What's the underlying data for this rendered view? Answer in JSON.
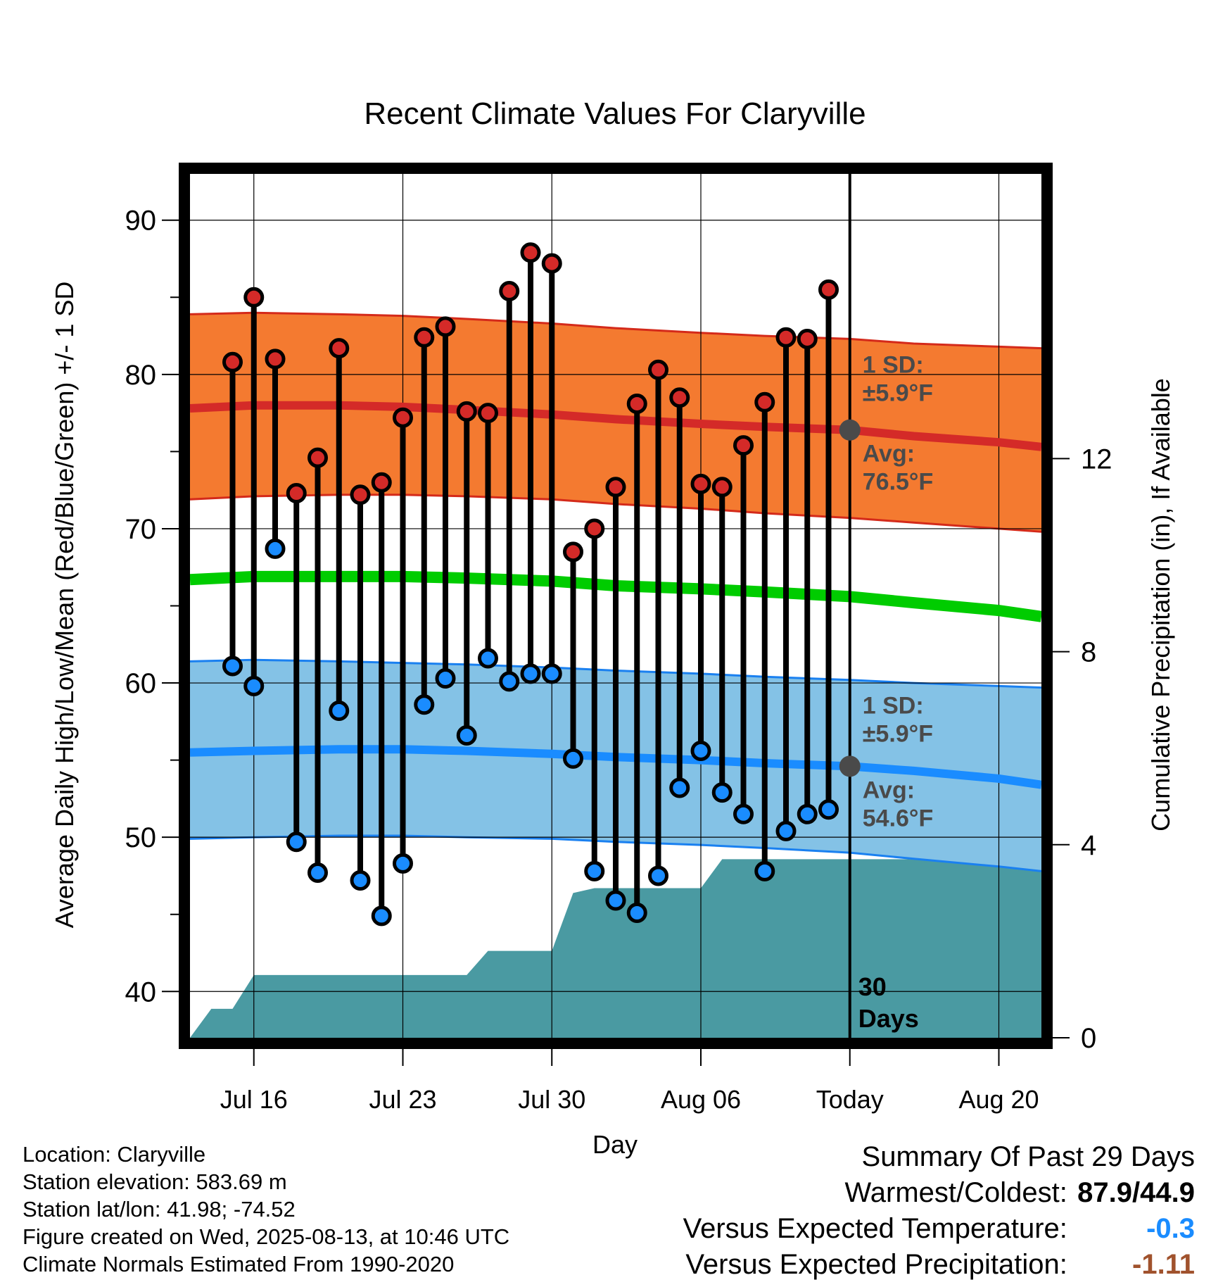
{
  "chart_data": {
    "type": "line",
    "title": "Recent Climate Values For Claryville",
    "xlabel": "Day",
    "ylabel": "Average Daily High/Low/Mean (Red/Blue/Green) +/- 1 SD",
    "y2label": "Cumulative Precipitation (in), If Available",
    "x_tick_labels": [
      "Jul 16",
      "Jul 23",
      "Jul 30",
      "Aug 06",
      "Today",
      "Aug 20"
    ],
    "x_tick_dates": [
      "2025-07-16",
      "2025-07-23",
      "2025-07-30",
      "2025-08-06",
      "2025-08-13",
      "2025-08-20"
    ],
    "x_range": [
      "2025-07-13",
      "2025-08-22"
    ],
    "ylim": [
      37,
      93
    ],
    "y_ticks": [
      40,
      50,
      60,
      70,
      80,
      90
    ],
    "y2lim": [
      0,
      17.9
    ],
    "y2_ticks": [
      0,
      4,
      8,
      12
    ],
    "grid": true,
    "today": "2025-08-13",
    "normals_dates": [
      "2025-07-13",
      "2025-07-16",
      "2025-07-20",
      "2025-07-23",
      "2025-07-26",
      "2025-07-30",
      "2025-08-02",
      "2025-08-06",
      "2025-08-09",
      "2025-08-13",
      "2025-08-16",
      "2025-08-20",
      "2025-08-22"
    ],
    "high_normal": [
      77.8,
      78.0,
      78.0,
      77.9,
      77.7,
      77.4,
      77.1,
      76.8,
      76.6,
      76.4,
      76.0,
      75.6,
      75.3
    ],
    "high_plus_sd": [
      83.9,
      84.0,
      83.9,
      83.8,
      83.6,
      83.3,
      83.0,
      82.7,
      82.5,
      82.3,
      82.0,
      81.8,
      81.7
    ],
    "high_minus_sd": [
      71.9,
      72.1,
      72.2,
      72.2,
      72.1,
      71.9,
      71.6,
      71.3,
      71.0,
      70.7,
      70.4,
      70.0,
      69.8
    ],
    "low_normal": [
      55.5,
      55.6,
      55.7,
      55.7,
      55.6,
      55.4,
      55.2,
      55.0,
      54.8,
      54.6,
      54.3,
      53.8,
      53.4
    ],
    "low_plus_sd": [
      61.4,
      61.5,
      61.4,
      61.3,
      61.2,
      61.0,
      60.8,
      60.6,
      60.4,
      60.2,
      60.0,
      59.8,
      59.7
    ],
    "low_minus_sd": [
      49.9,
      50.0,
      50.1,
      50.1,
      50.0,
      49.9,
      49.7,
      49.5,
      49.3,
      49.0,
      48.6,
      48.1,
      47.8
    ],
    "mean_normal": [
      66.7,
      66.9,
      66.9,
      66.9,
      66.8,
      66.6,
      66.3,
      66.1,
      65.9,
      65.6,
      65.2,
      64.7,
      64.3
    ],
    "observations": {
      "dates": [
        "2025-07-15",
        "2025-07-16",
        "2025-07-17",
        "2025-07-18",
        "2025-07-19",
        "2025-07-20",
        "2025-07-21",
        "2025-07-22",
        "2025-07-23",
        "2025-07-24",
        "2025-07-25",
        "2025-07-26",
        "2025-07-27",
        "2025-07-28",
        "2025-07-29",
        "2025-07-30",
        "2025-07-31",
        "2025-08-01",
        "2025-08-02",
        "2025-08-03",
        "2025-08-04",
        "2025-08-05",
        "2025-08-06",
        "2025-08-07",
        "2025-08-08",
        "2025-08-09",
        "2025-08-10",
        "2025-08-11",
        "2025-08-12"
      ],
      "highs": [
        80.8,
        85.0,
        81.0,
        72.3,
        74.6,
        81.7,
        72.2,
        73.0,
        77.2,
        82.4,
        83.1,
        77.6,
        77.5,
        85.4,
        87.9,
        87.2,
        68.5,
        70.0,
        72.7,
        78.1,
        80.3,
        78.5,
        72.9,
        72.7,
        75.4,
        78.2,
        82.4,
        82.3,
        85.5
      ],
      "lows": [
        61.1,
        59.8,
        68.7,
        49.7,
        47.7,
        58.2,
        47.2,
        44.9,
        48.3,
        58.6,
        60.3,
        56.6,
        61.6,
        60.1,
        60.6,
        60.6,
        55.1,
        47.8,
        45.9,
        45.1,
        47.5,
        53.2,
        55.6,
        52.9,
        51.5,
        47.8,
        50.4,
        51.5,
        51.8
      ]
    },
    "precipitation": {
      "dates": [
        "2025-07-13",
        "2025-07-14",
        "2025-07-15",
        "2025-07-16",
        "2025-07-26",
        "2025-07-27",
        "2025-07-30",
        "2025-07-31",
        "2025-08-01",
        "2025-08-06",
        "2025-08-07",
        "2025-08-22"
      ],
      "cumulative": [
        0.0,
        0.6,
        0.6,
        1.3,
        1.3,
        1.8,
        1.8,
        3.0,
        3.1,
        3.1,
        3.7,
        3.7
      ]
    },
    "annotations": {
      "high_sd": {
        "label": "1 SD:",
        "value": "±5.9°F"
      },
      "high_avg": {
        "label": "Avg:",
        "value": "76.5°F"
      },
      "low_sd": {
        "label": "1 SD:",
        "value": "±5.9°F"
      },
      "low_avg": {
        "label": "Avg:",
        "value": "54.6°F"
      },
      "period_number": "30",
      "period_unit": "Days"
    },
    "colors": {
      "high_band": "#f47a30",
      "high_edge": "#d42a1a",
      "high_line": "#d42a28",
      "low_band": "#84c2e6",
      "low_edge": "#1a80f0",
      "low_line": "#1a8cff",
      "mean_line": "#00cc00",
      "precip": "#4a9aa2",
      "high_marker": "#d42a28",
      "low_marker": "#1a8cff",
      "annotation": "#4a4a4a"
    }
  },
  "info": {
    "location": "Location: Claryville",
    "elevation": "Station elevation: 583.69 m",
    "latlon": "Station lat/lon: 41.98; -74.52",
    "created": "Figure created on Wed, 2025-08-13, at 10:46 UTC",
    "normals": "Climate Normals Estimated From 1990-2020"
  },
  "summary": {
    "title": "Summary Of Past 29 Days",
    "warm_cold_label": "Warmest/Coldest:",
    "warm_cold_value": "87.9/44.9",
    "temp_label": "Versus Expected Temperature:",
    "temp_value": "-0.3",
    "temp_color": "#1a8cff",
    "precip_label": "Versus Expected Precipitation:",
    "precip_value": "-1.11",
    "precip_color": "#a0522d"
  }
}
